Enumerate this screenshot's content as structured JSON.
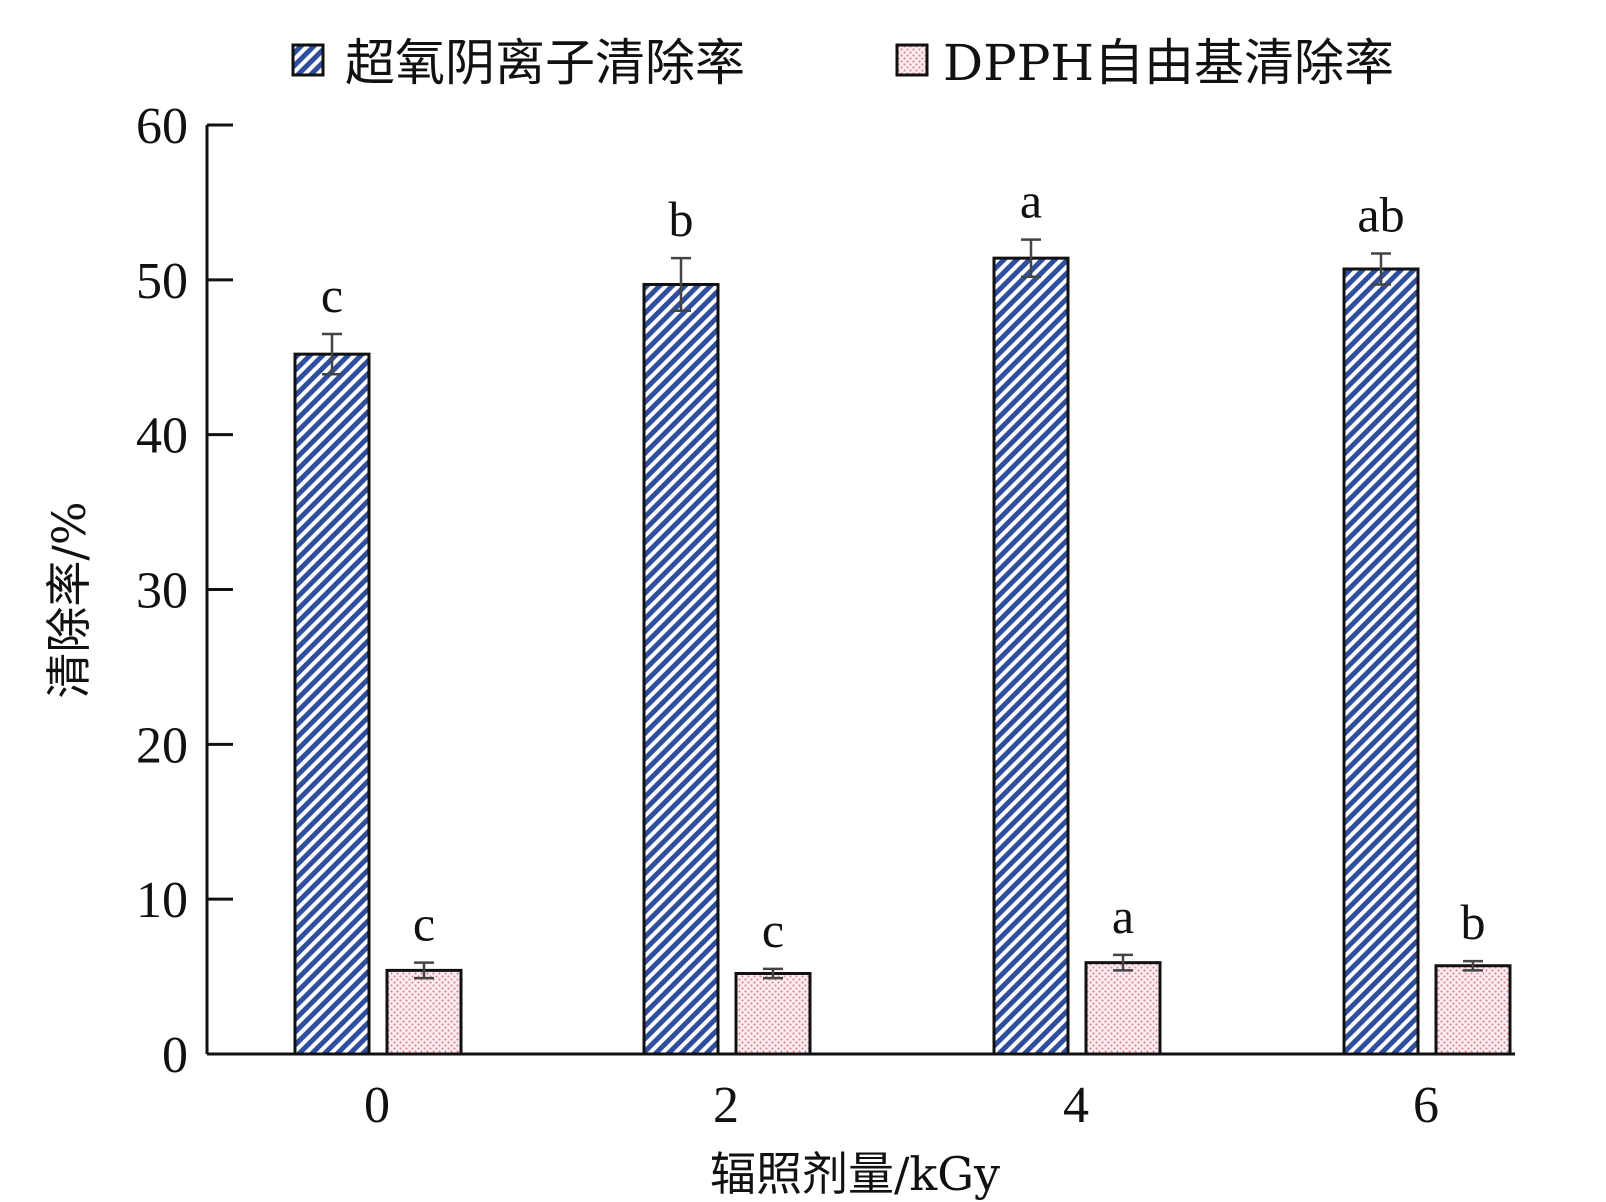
{
  "chart_data": {
    "type": "bar",
    "categories": [
      "0",
      "2",
      "4",
      "6"
    ],
    "series": [
      {
        "name": "超氧阴离子清除率",
        "values": [
          45.2,
          49.7,
          51.4,
          50.7
        ],
        "errors": [
          1.3,
          1.7,
          1.2,
          1.0
        ],
        "letters": [
          "c",
          "b",
          "a",
          "ab"
        ],
        "color": "#2f4f9e",
        "pattern": "diagonal-hatch"
      },
      {
        "name": "DPPH自由基清除率",
        "values": [
          5.4,
          5.2,
          5.9,
          5.7
        ],
        "errors": [
          0.5,
          0.3,
          0.5,
          0.3
        ],
        "letters": [
          "c",
          "c",
          "a",
          "b"
        ],
        "color": "#d98a99",
        "pattern": "dots"
      }
    ],
    "yticks": [
      "0",
      "10",
      "20",
      "30",
      "40",
      "50",
      "60"
    ],
    "ylim": [
      0,
      60
    ],
    "xlabel": "辐照剂量/kGy",
    "ylabel": "清除率/%",
    "legend_position": "top",
    "grid": false
  }
}
